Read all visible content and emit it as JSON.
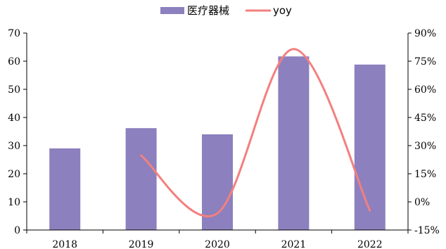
{
  "chart_data": {
    "type": "bar",
    "categories": [
      "2018",
      "2019",
      "2020",
      "2021",
      "2022"
    ],
    "series": [
      {
        "name": "医疗器械",
        "type": "bar",
        "axis": "left",
        "color": "#8c80be",
        "values": [
          29,
          36.2,
          34,
          61.7,
          58.8
        ]
      },
      {
        "name": "yoy",
        "type": "line",
        "axis": "right",
        "color": "#f47f7f",
        "smooth": true,
        "values": [
          null,
          24.8,
          -6.1,
          81.5,
          -4.7
        ]
      }
    ],
    "y_left": {
      "ylim": [
        0,
        70
      ],
      "ticks": [
        "0",
        "10",
        "20",
        "30",
        "40",
        "50",
        "60",
        "70"
      ]
    },
    "y_right": {
      "ylim": [
        -15,
        90
      ],
      "ticks": [
        "-15%",
        "0%",
        "15%",
        "30%",
        "45%",
        "60%",
        "75%",
        "90%"
      ]
    },
    "legend_position": "top-center",
    "grid": false
  }
}
